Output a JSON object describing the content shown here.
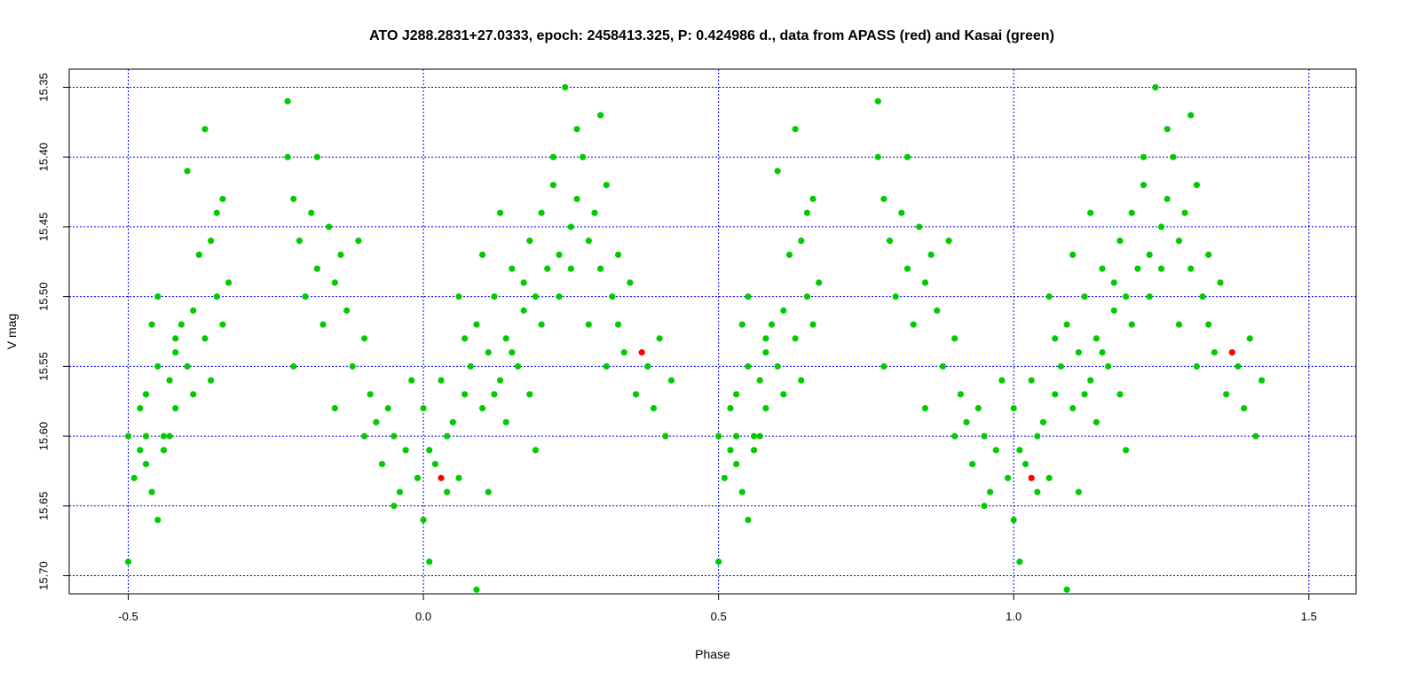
{
  "chart_data": {
    "type": "scatter",
    "title": "ATO J288.2831+27.0333, epoch: 2458413.325, P: 0.424986 d., data from APASS (red) and Kasai (green)",
    "xlabel": "Phase",
    "ylabel": "V mag",
    "xlim": [
      -0.6,
      1.58
    ],
    "ylim": [
      15.713,
      15.337
    ],
    "y_axis_inverted": true,
    "x_ticks": [
      -0.5,
      0.0,
      0.5,
      1.0,
      1.5
    ],
    "x_tick_labels": [
      "-0.5",
      "0.0",
      "0.5",
      "1.0",
      "1.5"
    ],
    "y_ticks": [
      15.35,
      15.4,
      15.45,
      15.5,
      15.55,
      15.6,
      15.65,
      15.7
    ],
    "y_tick_labels": [
      "15.35",
      "15.40",
      "15.45",
      "15.50",
      "15.55",
      "15.60",
      "15.65",
      "15.70"
    ],
    "grid": true,
    "grid_color": "#0000ff",
    "phase_period_repeat": 1.0,
    "series": [
      {
        "color": "#ff0000",
        "points": [
          [
            0.03,
            15.63
          ],
          [
            0.37,
            15.54
          ]
        ]
      },
      {
        "color": "#00cc00",
        "points": [
          [
            -0.5,
            15.6
          ],
          [
            -0.5,
            15.69
          ],
          [
            -0.49,
            15.63
          ],
          [
            -0.48,
            15.58
          ],
          [
            -0.48,
            15.61
          ],
          [
            -0.47,
            15.62
          ],
          [
            -0.47,
            15.6
          ],
          [
            -0.46,
            15.64
          ],
          [
            -0.46,
            15.52
          ],
          [
            -0.45,
            15.66
          ],
          [
            -0.45,
            15.55
          ],
          [
            -0.44,
            15.6
          ],
          [
            -0.43,
            15.56
          ],
          [
            -0.43,
            15.6
          ],
          [
            -0.42,
            15.54
          ],
          [
            -0.42,
            15.58
          ],
          [
            -0.41,
            15.52
          ],
          [
            -0.4,
            15.55
          ],
          [
            -0.39,
            15.51
          ],
          [
            -0.39,
            15.57
          ],
          [
            -0.38,
            15.47
          ],
          [
            -0.37,
            15.53
          ],
          [
            -0.36,
            15.56
          ],
          [
            -0.35,
            15.5
          ],
          [
            -0.35,
            15.44
          ],
          [
            -0.34,
            15.52
          ],
          [
            -0.33,
            15.49
          ],
          [
            -0.42,
            15.53
          ],
          [
            -0.44,
            15.61
          ],
          [
            -0.47,
            15.57
          ],
          [
            -0.37,
            15.38
          ],
          [
            -0.34,
            15.43
          ],
          [
            -0.36,
            15.46
          ],
          [
            -0.4,
            15.41
          ],
          [
            -0.45,
            15.5
          ],
          [
            -0.23,
            15.36
          ],
          [
            -0.23,
            15.4
          ],
          [
            -0.22,
            15.43
          ],
          [
            -0.21,
            15.46
          ],
          [
            -0.2,
            15.5
          ],
          [
            -0.19,
            15.44
          ],
          [
            -0.18,
            15.48
          ],
          [
            -0.17,
            15.52
          ],
          [
            -0.16,
            15.45
          ],
          [
            -0.15,
            15.49
          ],
          [
            -0.14,
            15.47
          ],
          [
            -0.13,
            15.51
          ],
          [
            -0.12,
            15.55
          ],
          [
            -0.11,
            15.46
          ],
          [
            -0.1,
            15.53
          ],
          [
            -0.09,
            15.57
          ],
          [
            -0.08,
            15.59
          ],
          [
            -0.07,
            15.62
          ],
          [
            -0.06,
            15.58
          ],
          [
            -0.05,
            15.6
          ],
          [
            -0.04,
            15.64
          ],
          [
            -0.03,
            15.61
          ],
          [
            -0.02,
            15.56
          ],
          [
            -0.01,
            15.63
          ],
          [
            0.0,
            15.66
          ],
          [
            -0.18,
            15.4
          ],
          [
            -0.22,
            15.55
          ],
          [
            -0.15,
            15.58
          ],
          [
            -0.1,
            15.6
          ],
          [
            -0.05,
            15.65
          ],
          [
            0.0,
            15.58
          ],
          [
            0.01,
            15.61
          ],
          [
            0.02,
            15.62
          ],
          [
            0.03,
            15.56
          ],
          [
            0.04,
            15.6
          ],
          [
            0.05,
            15.59
          ],
          [
            0.06,
            15.63
          ],
          [
            0.07,
            15.57
          ],
          [
            0.08,
            15.55
          ],
          [
            0.09,
            15.52
          ],
          [
            0.1,
            15.58
          ],
          [
            0.11,
            15.54
          ],
          [
            0.12,
            15.5
          ],
          [
            0.13,
            15.56
          ],
          [
            0.14,
            15.53
          ],
          [
            0.15,
            15.48
          ],
          [
            0.16,
            15.55
          ],
          [
            0.17,
            15.51
          ],
          [
            0.18,
            15.46
          ],
          [
            0.19,
            15.5
          ],
          [
            0.2,
            15.44
          ],
          [
            0.21,
            15.48
          ],
          [
            0.22,
            15.42
          ],
          [
            0.23,
            15.47
          ],
          [
            0.24,
            15.35
          ],
          [
            0.25,
            15.45
          ],
          [
            0.26,
            15.43
          ],
          [
            0.27,
            15.4
          ],
          [
            0.28,
            15.46
          ],
          [
            0.29,
            15.44
          ],
          [
            0.3,
            15.48
          ],
          [
            0.31,
            15.42
          ],
          [
            0.32,
            15.5
          ],
          [
            0.33,
            15.52
          ],
          [
            0.34,
            15.54
          ],
          [
            0.35,
            15.49
          ],
          [
            0.36,
            15.57
          ],
          [
            0.38,
            15.55
          ],
          [
            0.39,
            15.58
          ],
          [
            0.4,
            15.53
          ],
          [
            0.41,
            15.6
          ],
          [
            0.42,
            15.56
          ],
          [
            0.09,
            15.71
          ],
          [
            0.01,
            15.69
          ],
          [
            0.11,
            15.64
          ],
          [
            0.06,
            15.5
          ],
          [
            0.13,
            15.44
          ],
          [
            0.19,
            15.61
          ],
          [
            0.15,
            15.54
          ],
          [
            0.12,
            15.57
          ],
          [
            0.17,
            15.49
          ],
          [
            0.2,
            15.52
          ],
          [
            0.23,
            15.5
          ],
          [
            0.26,
            15.38
          ],
          [
            0.28,
            15.52
          ],
          [
            0.3,
            15.37
          ],
          [
            0.33,
            15.47
          ],
          [
            0.04,
            15.64
          ],
          [
            0.07,
            15.53
          ],
          [
            0.1,
            15.47
          ],
          [
            0.14,
            15.59
          ],
          [
            0.18,
            15.57
          ],
          [
            0.22,
            15.4
          ],
          [
            0.25,
            15.48
          ],
          [
            0.31,
            15.55
          ]
        ]
      }
    ]
  }
}
